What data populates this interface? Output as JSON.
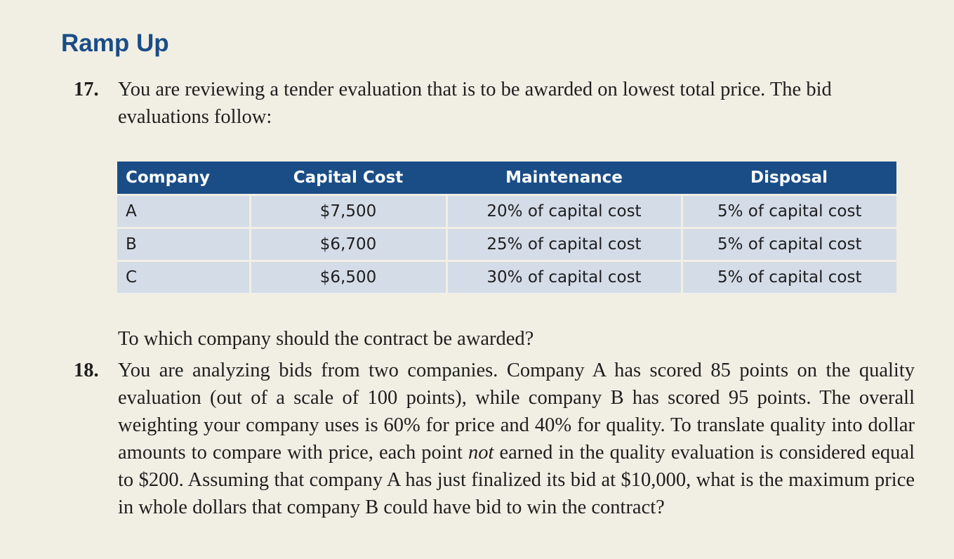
{
  "section_title": "Ramp Up",
  "q17": {
    "number": "17.",
    "text": "You are reviewing a tender evaluation that is to be awarded on lowest total price. The bid evaluations follow:",
    "follow_up": "To which company should the contract be awarded?"
  },
  "table": {
    "headers": [
      "Company",
      "Capital Cost",
      "Maintenance",
      "Disposal"
    ],
    "rows": [
      [
        "A",
        "$7,500",
        "20% of capital cost",
        "5% of capital cost"
      ],
      [
        "B",
        "$6,700",
        "25% of capital cost",
        "5% of capital cost"
      ],
      [
        "C",
        "$6,500",
        "30% of capital cost",
        "5% of capital cost"
      ]
    ]
  },
  "q18": {
    "number": "18.",
    "text_before": "You are analyzing bids from two companies. Company A has scored 85 points on the quality evaluation (out of a scale of 100 points), while company B has scored 95 points. The overall weighting your company uses is 60% for price and 40% for quality. To translate quality into dollar amounts to compare with price, each point ",
    "emphasis": "not",
    "text_after": " earned in the quality evaluation is considered equal to $200. Assuming that company A has just finalized its bid at $10,000, what is the maximum price in whole dollars that company B could have bid to win the contract?"
  },
  "colors": {
    "accent": "#1a4d86",
    "table_cell": "#d4dce8",
    "page_background": "#f1efe4"
  }
}
